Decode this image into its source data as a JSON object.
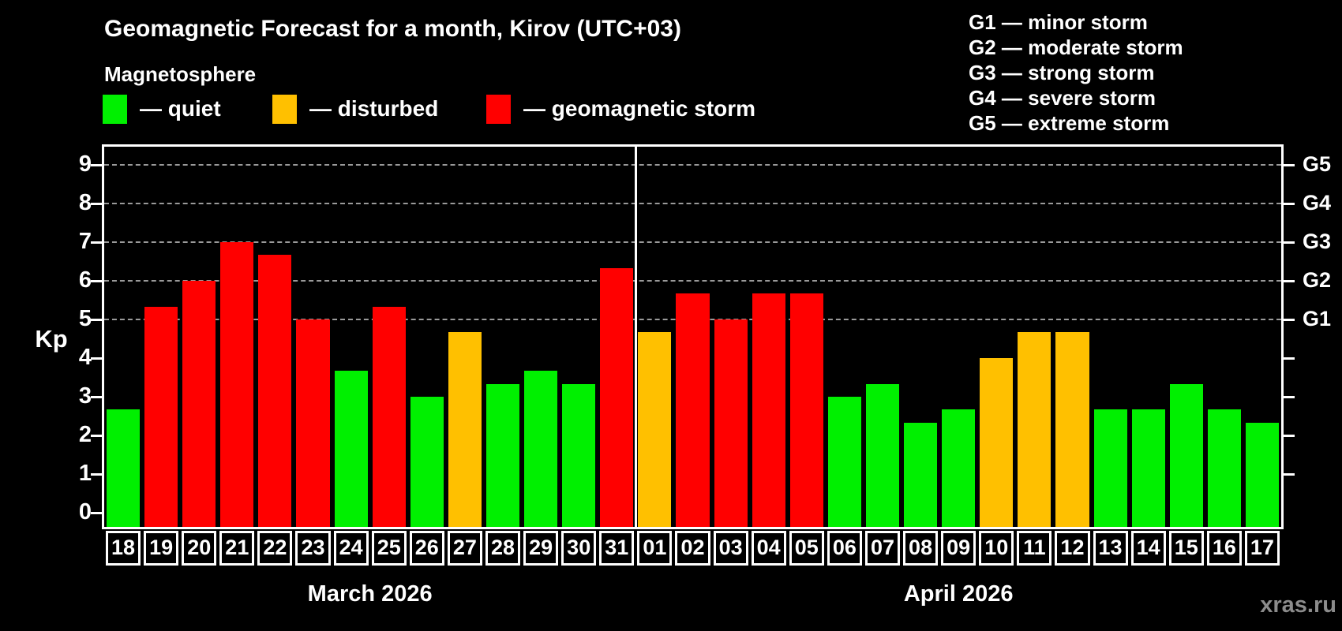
{
  "header": {
    "title": "Geomagnetic Forecast for a month, Kirov (UTC+03)",
    "subtitle": "Magnetosphere",
    "legend": [
      {
        "key": "quiet",
        "label": "— quiet",
        "color": "#00f000"
      },
      {
        "key": "disturbed",
        "label": "— disturbed",
        "color": "#ffc000"
      },
      {
        "key": "storm",
        "label": "— geomagnetic storm",
        "color": "#ff0000"
      }
    ],
    "g_scale_legend": [
      "G1 — minor storm",
      "G2 — moderate storm",
      "G3 — strong storm",
      "G4 — severe storm",
      "G5 — extreme storm"
    ]
  },
  "chart_data": {
    "type": "bar",
    "ylabel": "Kp",
    "ylim": [
      0,
      9.8
    ],
    "yticks": [
      0,
      1,
      2,
      3,
      4,
      5,
      6,
      7,
      8,
      9
    ],
    "gridlines": {
      "values": [
        5,
        6,
        7,
        8,
        9
      ],
      "style": "dashed"
    },
    "right_ticks": [
      1,
      2,
      3,
      4,
      5,
      6,
      7,
      8,
      9
    ],
    "right_axis_labels": [
      {
        "label": "G1",
        "value": 5
      },
      {
        "label": "G2",
        "value": 6
      },
      {
        "label": "G3",
        "value": 7
      },
      {
        "label": "G4",
        "value": 8
      },
      {
        "label": "G5",
        "value": 9
      }
    ],
    "months": [
      {
        "label": "March 2026",
        "days": 14
      },
      {
        "label": "April 2026",
        "days": 17
      }
    ],
    "colors": {
      "quiet": "#00f000",
      "disturbed": "#ffc000",
      "storm": "#ff0000"
    },
    "series": [
      {
        "month": "March 2026",
        "day": "18",
        "kp": 2.67,
        "status": "quiet"
      },
      {
        "month": "March 2026",
        "day": "19",
        "kp": 5.33,
        "status": "storm"
      },
      {
        "month": "March 2026",
        "day": "20",
        "kp": 6.0,
        "status": "storm"
      },
      {
        "month": "March 2026",
        "day": "21",
        "kp": 7.0,
        "status": "storm"
      },
      {
        "month": "March 2026",
        "day": "22",
        "kp": 6.67,
        "status": "storm"
      },
      {
        "month": "March 2026",
        "day": "23",
        "kp": 5.0,
        "status": "storm"
      },
      {
        "month": "March 2026",
        "day": "24",
        "kp": 3.67,
        "status": "quiet"
      },
      {
        "month": "March 2026",
        "day": "25",
        "kp": 5.33,
        "status": "storm"
      },
      {
        "month": "March 2026",
        "day": "26",
        "kp": 3.0,
        "status": "quiet"
      },
      {
        "month": "March 2026",
        "day": "27",
        "kp": 4.67,
        "status": "disturbed"
      },
      {
        "month": "March 2026",
        "day": "28",
        "kp": 3.33,
        "status": "quiet"
      },
      {
        "month": "March 2026",
        "day": "29",
        "kp": 3.67,
        "status": "quiet"
      },
      {
        "month": "March 2026",
        "day": "30",
        "kp": 3.33,
        "status": "quiet"
      },
      {
        "month": "March 2026",
        "day": "31",
        "kp": 6.33,
        "status": "storm"
      },
      {
        "month": "April 2026",
        "day": "01",
        "kp": 4.67,
        "status": "disturbed"
      },
      {
        "month": "April 2026",
        "day": "02",
        "kp": 5.67,
        "status": "storm"
      },
      {
        "month": "April 2026",
        "day": "03",
        "kp": 5.0,
        "status": "storm"
      },
      {
        "month": "April 2026",
        "day": "04",
        "kp": 5.67,
        "status": "storm"
      },
      {
        "month": "April 2026",
        "day": "05",
        "kp": 5.67,
        "status": "storm"
      },
      {
        "month": "April 2026",
        "day": "06",
        "kp": 3.0,
        "status": "quiet"
      },
      {
        "month": "April 2026",
        "day": "07",
        "kp": 3.33,
        "status": "quiet"
      },
      {
        "month": "April 2026",
        "day": "08",
        "kp": 2.33,
        "status": "quiet"
      },
      {
        "month": "April 2026",
        "day": "09",
        "kp": 2.67,
        "status": "quiet"
      },
      {
        "month": "April 2026",
        "day": "10",
        "kp": 4.0,
        "status": "disturbed"
      },
      {
        "month": "April 2026",
        "day": "11",
        "kp": 4.67,
        "status": "disturbed"
      },
      {
        "month": "April 2026",
        "day": "12",
        "kp": 4.67,
        "status": "disturbed"
      },
      {
        "month": "April 2026",
        "day": "13",
        "kp": 2.67,
        "status": "quiet"
      },
      {
        "month": "April 2026",
        "day": "14",
        "kp": 2.67,
        "status": "quiet"
      },
      {
        "month": "April 2026",
        "day": "15",
        "kp": 3.33,
        "status": "quiet"
      },
      {
        "month": "April 2026",
        "day": "16",
        "kp": 2.67,
        "status": "quiet"
      },
      {
        "month": "April 2026",
        "day": "17",
        "kp": 2.33,
        "status": "quiet"
      }
    ]
  },
  "watermark": "xras.ru"
}
